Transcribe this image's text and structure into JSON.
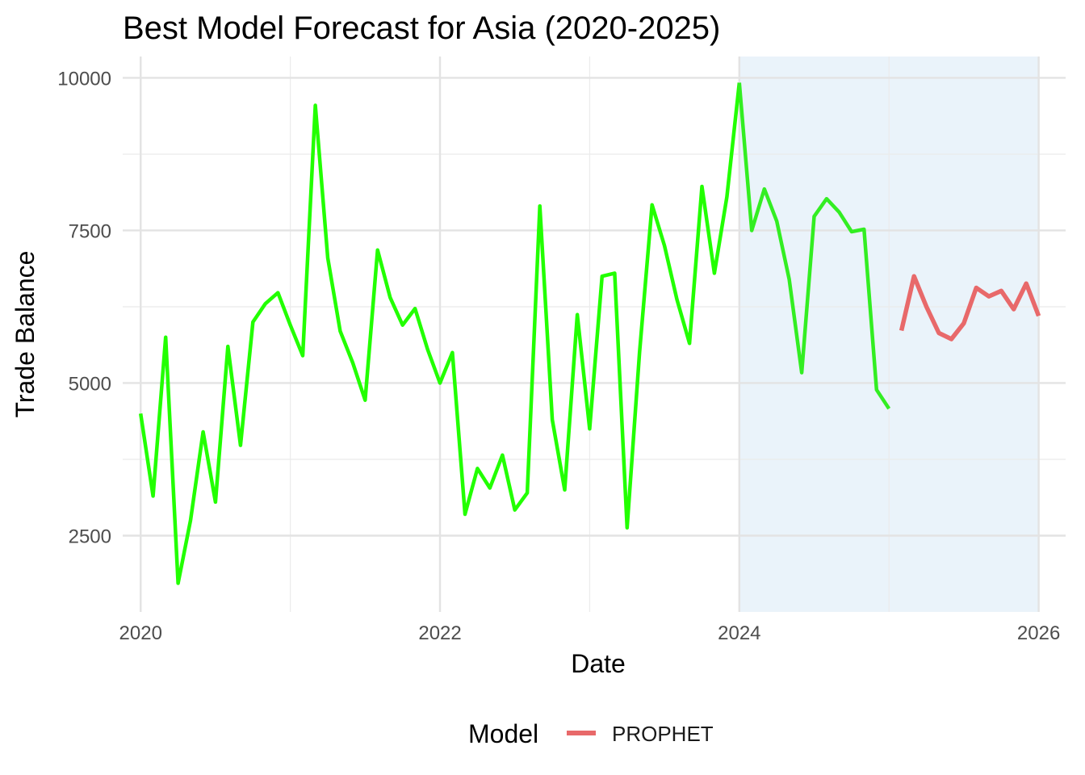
{
  "chart_data": {
    "type": "line",
    "title": "Best Model Forecast for Asia (2020-2025)",
    "xlabel": "Date",
    "ylabel": "Trade Balance",
    "xlim": [
      2019.88,
      2026.18
    ],
    "ylim": [
      1250,
      10350
    ],
    "x_ticks": [
      2020,
      2022,
      2024,
      2026
    ],
    "x_tick_labels": [
      "2020",
      "2022",
      "2024",
      "2026"
    ],
    "x_minor_ticks": [
      2021,
      2023,
      2025
    ],
    "y_ticks": [
      2500,
      5000,
      7500,
      10000
    ],
    "y_tick_labels": [
      "2500",
      "5000",
      "7500",
      "10000"
    ],
    "y_minor_ticks": [
      3750,
      6250,
      8750
    ],
    "grid": true,
    "forecast_region": {
      "x_start": 2024.0,
      "x_end": 2026.0,
      "color": "#eaf3fa"
    },
    "legend": {
      "title": "Model",
      "position": "bottom",
      "entries": [
        "PROPHET"
      ]
    },
    "series": [
      {
        "color": "#22ff00",
        "x": [
          2020.0,
          2020.083,
          2020.167,
          2020.25,
          2020.333,
          2020.417,
          2020.5,
          2020.583,
          2020.667,
          2020.75,
          2020.833,
          2020.917,
          2021.0,
          2021.083,
          2021.167,
          2021.25,
          2021.333,
          2021.417,
          2021.5,
          2021.583,
          2021.667,
          2021.75,
          2021.833,
          2021.917,
          2022.0,
          2022.083,
          2022.167,
          2022.25,
          2022.333,
          2022.417,
          2022.5,
          2022.583,
          2022.667,
          2022.75,
          2022.833,
          2022.917,
          2023.0,
          2023.083,
          2023.167,
          2023.25,
          2023.333,
          2023.417,
          2023.5,
          2023.583,
          2023.667,
          2023.75,
          2023.833,
          2023.917,
          2024.0
        ],
        "values": [
          4500,
          3150,
          5750,
          1720,
          2750,
          4200,
          3050,
          5600,
          3980,
          6000,
          6300,
          6480,
          5950,
          5450,
          9550,
          7050,
          5850,
          5330,
          4720,
          7180,
          6400,
          5950,
          6220,
          5550,
          5000,
          5500,
          2850,
          3600,
          3280,
          3820,
          2920,
          3200,
          7900,
          4400,
          3250,
          6120,
          4250,
          6750,
          6800,
          2630,
          5500,
          7920,
          7250,
          6370,
          5650,
          8220,
          6800,
          8050,
          9920
        ]
      },
      {
        "color": "#33ee22",
        "x": [
          2024.0,
          2024.083,
          2024.167,
          2024.25,
          2024.333,
          2024.417,
          2024.5,
          2024.583,
          2024.667,
          2024.75,
          2024.833,
          2024.917,
          2025.0
        ],
        "values": [
          9920,
          7500,
          8180,
          7650,
          6700,
          5170,
          7730,
          8020,
          7800,
          7480,
          7520,
          4890,
          4580
        ]
      },
      {
        "name": "PROPHET",
        "color": "#e8696a",
        "x": [
          2025.083,
          2025.167,
          2025.25,
          2025.333,
          2025.417,
          2025.5,
          2025.583,
          2025.667,
          2025.75,
          2025.833,
          2025.917,
          2026.0
        ],
        "values": [
          5860,
          6750,
          6250,
          5820,
          5720,
          5980,
          6560,
          6420,
          6510,
          6210,
          6630,
          6100
        ]
      }
    ]
  }
}
